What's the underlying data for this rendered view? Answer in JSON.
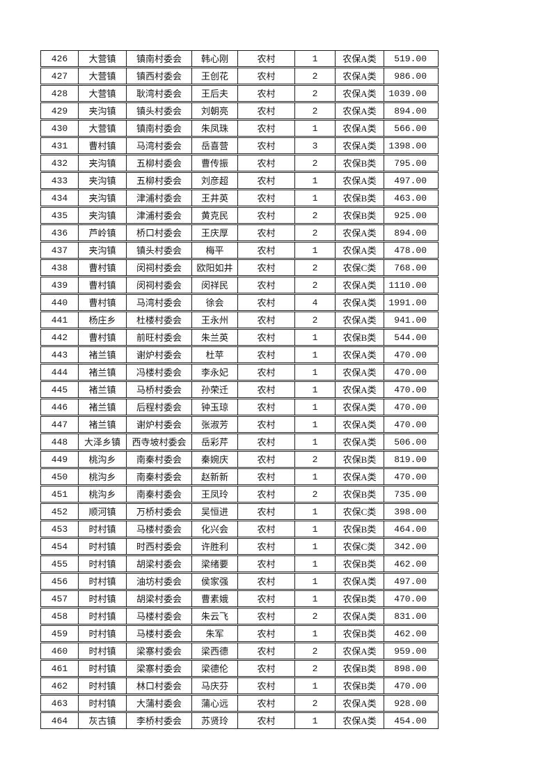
{
  "table": {
    "rows": [
      [
        "426",
        "大营镇",
        "镇南村委会",
        "韩心刚",
        "农村",
        "1",
        "农保A类",
        "519.00"
      ],
      [
        "427",
        "大营镇",
        "镇西村委会",
        "王创花",
        "农村",
        "2",
        "农保A类",
        "986.00"
      ],
      [
        "428",
        "大营镇",
        "耿湾村委会",
        "王后夫",
        "农村",
        "2",
        "农保A类",
        "1039.00"
      ],
      [
        "429",
        "夹沟镇",
        "镇头村委会",
        "刘朝亮",
        "农村",
        "2",
        "农保A类",
        "894.00"
      ],
      [
        "430",
        "大营镇",
        "镇南村委会",
        "朱凤珠",
        "农村",
        "1",
        "农保A类",
        "566.00"
      ],
      [
        "431",
        "曹村镇",
        "马湾村委会",
        "岳喜营",
        "农村",
        "3",
        "农保A类",
        "1398.00"
      ],
      [
        "432",
        "夹沟镇",
        "五柳村委会",
        "曹传振",
        "农村",
        "2",
        "农保B类",
        "795.00"
      ],
      [
        "433",
        "夹沟镇",
        "五柳村委会",
        "刘彦超",
        "农村",
        "1",
        "农保A类",
        "497.00"
      ],
      [
        "434",
        "夹沟镇",
        "津浦村委会",
        "王井英",
        "农村",
        "1",
        "农保B类",
        "463.00"
      ],
      [
        "435",
        "夹沟镇",
        "津浦村委会",
        "黄克民",
        "农村",
        "2",
        "农保B类",
        "925.00"
      ],
      [
        "436",
        "芦岭镇",
        "桥口村委会",
        "王庆厚",
        "农村",
        "2",
        "农保A类",
        "894.00"
      ],
      [
        "437",
        "夹沟镇",
        "镇头村委会",
        "梅平",
        "农村",
        "1",
        "农保A类",
        "478.00"
      ],
      [
        "438",
        "曹村镇",
        "闵祠村委会",
        "欧阳如井",
        "农村",
        "2",
        "农保C类",
        "768.00"
      ],
      [
        "439",
        "曹村镇",
        "闵祠村委会",
        "闵祥民",
        "农村",
        "2",
        "农保A类",
        "1110.00"
      ],
      [
        "440",
        "曹村镇",
        "马湾村委会",
        "徐会",
        "农村",
        "4",
        "农保A类",
        "1991.00"
      ],
      [
        "441",
        "杨庄乡",
        "杜楼村委会",
        "王永州",
        "农村",
        "2",
        "农保A类",
        "941.00"
      ],
      [
        "442",
        "曹村镇",
        "前旺村委会",
        "朱兰英",
        "农村",
        "1",
        "农保B类",
        "544.00"
      ],
      [
        "443",
        "褚兰镇",
        "谢炉村委会",
        "杜苹",
        "农村",
        "1",
        "农保A类",
        "470.00"
      ],
      [
        "444",
        "褚兰镇",
        "冯楼村委会",
        "李永妃",
        "农村",
        "1",
        "农保A类",
        "470.00"
      ],
      [
        "445",
        "褚兰镇",
        "马桥村委会",
        "孙荣迁",
        "农村",
        "1",
        "农保A类",
        "470.00"
      ],
      [
        "446",
        "褚兰镇",
        "后程村委会",
        "钟玉琼",
        "农村",
        "1",
        "农保A类",
        "470.00"
      ],
      [
        "447",
        "褚兰镇",
        "谢炉村委会",
        "张淑芳",
        "农村",
        "1",
        "农保A类",
        "470.00"
      ],
      [
        "448",
        "大泽乡镇",
        "西寺坡村委会",
        "岳彩芹",
        "农村",
        "1",
        "农保A类",
        "506.00"
      ],
      [
        "449",
        "桃沟乡",
        "南秦村委会",
        "秦婉庆",
        "农村",
        "2",
        "农保B类",
        "819.00"
      ],
      [
        "450",
        "桃沟乡",
        "南秦村委会",
        "赵新新",
        "农村",
        "1",
        "农保A类",
        "470.00"
      ],
      [
        "451",
        "桃沟乡",
        "南秦村委会",
        "王凤玲",
        "农村",
        "2",
        "农保B类",
        "735.00"
      ],
      [
        "452",
        "顺河镇",
        "万桥村委会",
        "吴恒进",
        "农村",
        "1",
        "农保C类",
        "398.00"
      ],
      [
        "453",
        "时村镇",
        "马楼村委会",
        "化兴会",
        "农村",
        "1",
        "农保B类",
        "464.00"
      ],
      [
        "454",
        "时村镇",
        "时西村委会",
        "许胜利",
        "农村",
        "1",
        "农保C类",
        "342.00"
      ],
      [
        "455",
        "时村镇",
        "胡梁村委会",
        "梁绪要",
        "农村",
        "1",
        "农保B类",
        "462.00"
      ],
      [
        "456",
        "时村镇",
        "油坊村委会",
        "侯家强",
        "农村",
        "1",
        "农保A类",
        "497.00"
      ],
      [
        "457",
        "时村镇",
        "胡梁村委会",
        "曹素娥",
        "农村",
        "1",
        "农保B类",
        "470.00"
      ],
      [
        "458",
        "时村镇",
        "马楼村委会",
        "朱云飞",
        "农村",
        "2",
        "农保A类",
        "831.00"
      ],
      [
        "459",
        "时村镇",
        "马楼村委会",
        "朱军",
        "农村",
        "1",
        "农保B类",
        "462.00"
      ],
      [
        "460",
        "时村镇",
        "梁寨村委会",
        "梁西德",
        "农村",
        "2",
        "农保A类",
        "959.00"
      ],
      [
        "461",
        "时村镇",
        "梁寨村委会",
        "梁德伦",
        "农村",
        "2",
        "农保B类",
        "898.00"
      ],
      [
        "462",
        "时村镇",
        "林口村委会",
        "马庆芬",
        "农村",
        "1",
        "农保B类",
        "470.00"
      ],
      [
        "463",
        "时村镇",
        "大蒲村委会",
        "蒲心远",
        "农村",
        "2",
        "农保A类",
        "928.00"
      ],
      [
        "464",
        "灰古镇",
        "李桥村委会",
        "苏贤玲",
        "农村",
        "1",
        "农保A类",
        "454.00"
      ]
    ]
  }
}
